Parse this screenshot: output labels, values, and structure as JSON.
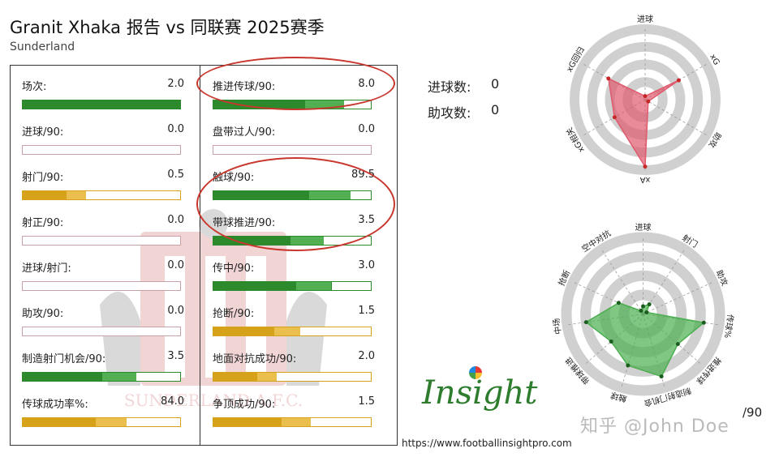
{
  "title": "Granit Xhaka 报告 vs 同联赛 2025赛季",
  "subtitle": "Sunderland",
  "colors": {
    "green": "#2c8a2c",
    "green_light": "#5cb85c",
    "gold": "#d6a21a",
    "gold_light": "#f0c75a",
    "pink_border": "#c9a0a8",
    "radar_red": "#e05a6e",
    "radar_green": "#4caf50",
    "annotation_red": "#c8372d"
  },
  "left_stats": [
    {
      "label": "场次:",
      "value": "2.0",
      "fill": 1.0,
      "color": "green"
    },
    {
      "label": "进球/90:",
      "value": "0.0",
      "fill": 0.0,
      "color": "empty"
    },
    {
      "label": "射门/90:",
      "value": "0.5",
      "fill": 0.4,
      "color": "gold"
    },
    {
      "label": "射正/90:",
      "value": "0.0",
      "fill": 0.0,
      "color": "empty"
    },
    {
      "label": "进球/射门:",
      "value": "0.0",
      "fill": 0.0,
      "color": "empty"
    },
    {
      "label": "助攻/90:",
      "value": "0.0",
      "fill": 0.0,
      "color": "empty"
    },
    {
      "label": "制造射门机会/90:",
      "value": "3.5",
      "fill": 0.72,
      "color": "green"
    },
    {
      "label": "传球成功率%:",
      "value": "84.0",
      "fill": 0.66,
      "color": "gold"
    }
  ],
  "right_stats": [
    {
      "label": "推进传球/90:",
      "value": "8.0",
      "fill": 0.83,
      "color": "green"
    },
    {
      "label": "盘带过人/90:",
      "value": "0.0",
      "fill": 0.0,
      "color": "empty"
    },
    {
      "label": "触球/90:",
      "value": "89.5",
      "fill": 0.87,
      "color": "green"
    },
    {
      "label": "带球推进/90:",
      "value": "3.5",
      "fill": 0.7,
      "color": "green"
    },
    {
      "label": "传中/90:",
      "value": "3.0",
      "fill": 0.75,
      "color": "green"
    },
    {
      "label": "抢断/90:",
      "value": "1.5",
      "fill": 0.55,
      "color": "gold"
    },
    {
      "label": "地面对抗成功/90:",
      "value": "2.0",
      "fill": 0.4,
      "color": "gold"
    },
    {
      "label": "争顶成功/90:",
      "value": "1.5",
      "fill": 0.62,
      "color": "gold"
    }
  ],
  "summary": {
    "goals_label": "进球数:",
    "goals_value": "0",
    "assists_label": "助攻数:",
    "assists_value": "0"
  },
  "chart_data": [
    {
      "type": "radar",
      "axes": [
        "进球",
        "xG",
        "助攻",
        "xA",
        "xG相关",
        "xG回归"
      ],
      "values": [
        0.05,
        0.55,
        0.05,
        0.95,
        0.5,
        0.6
      ],
      "rings": 4
    },
    {
      "type": "radar",
      "axes": [
        "进球",
        "射门",
        "助攻",
        "传球%",
        "推进传球",
        "制造射门机会",
        "触球",
        "带球推进",
        "中场",
        "抢断",
        "空中对抗"
      ],
      "values": [
        0.1,
        0.15,
        0.05,
        0.8,
        0.6,
        0.85,
        0.7,
        0.55,
        0.75,
        0.35,
        0.05
      ],
      "rings": 4
    }
  ],
  "logo": "Insight",
  "url": "https://www.footballinsightpro.com",
  "watermark": "知乎 @John Doe",
  "per90_label": "/90",
  "crest_text": "SUNDERLAND A.F.C."
}
